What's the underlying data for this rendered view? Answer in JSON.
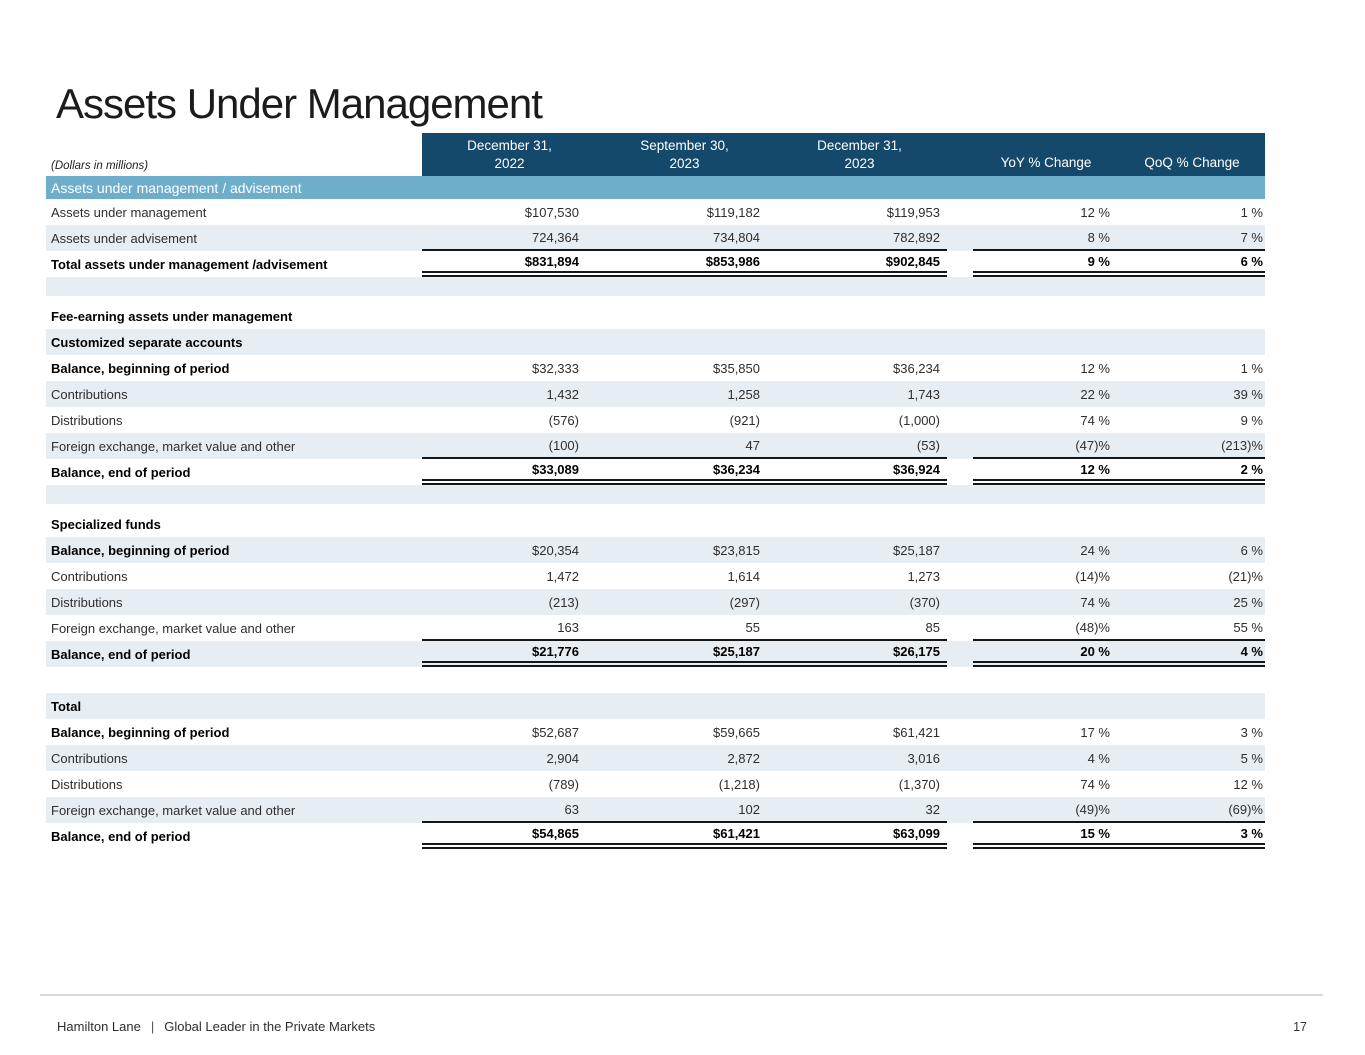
{
  "page": {
    "title": "Assets Under Management",
    "units_note": "(Dollars in millions)",
    "footer": {
      "brand": "Hamilton Lane",
      "separator": "|",
      "tagline": "Global Leader in the Private Markets",
      "page_number": "17"
    }
  },
  "colors": {
    "header_bg": "#14496b",
    "band_bg": "#6faecb",
    "row_shade_bg": "#e7eef3"
  },
  "table": {
    "band_label": "Assets under management / advisement",
    "columns": [
      {
        "line1": "December 31,",
        "line2": "2022"
      },
      {
        "line1": "September 30,",
        "line2": "2023"
      },
      {
        "line1": "December 31,",
        "line2": "2023"
      },
      {
        "label": "YoY % Change"
      },
      {
        "label": "QoQ % Change"
      }
    ],
    "rows": [
      {
        "kind": "data",
        "label": "Assets under management",
        "values": [
          "$107,530",
          "$119,182",
          "$119,953",
          "12 %",
          "1 %"
        ],
        "shaded": false
      },
      {
        "kind": "data",
        "label": "Assets under advisement",
        "values": [
          "724,364",
          "734,804",
          "782,892",
          "8 %",
          "7 %"
        ],
        "shaded": true,
        "rule": "single-below"
      },
      {
        "kind": "data",
        "label": "Total assets under management /advisement",
        "values": [
          "$831,894",
          "$853,986",
          "$902,845",
          "9 %",
          "6 %"
        ],
        "shaded": false,
        "bold": "row",
        "rule": "double-below"
      },
      {
        "kind": "spacer",
        "shaded": true
      },
      {
        "kind": "gap",
        "shaded": false
      },
      {
        "kind": "section",
        "label": "Fee-earning assets under management",
        "shaded": false
      },
      {
        "kind": "section",
        "label": "Customized separate accounts",
        "shaded": true
      },
      {
        "kind": "data",
        "label": "Balance, beginning of period",
        "values": [
          "$32,333",
          "$35,850",
          "$36,234",
          "12 %",
          "1 %"
        ],
        "shaded": false,
        "bold": "label"
      },
      {
        "kind": "data",
        "label": "Contributions",
        "values": [
          "1,432",
          "1,258",
          "1,743",
          "22 %",
          "39 %"
        ],
        "shaded": true
      },
      {
        "kind": "data",
        "label": "Distributions",
        "values": [
          "(576)",
          "(921)",
          "(1,000)",
          "74 %",
          "9 %"
        ],
        "shaded": false
      },
      {
        "kind": "data",
        "label": "Foreign exchange, market value and other",
        "values": [
          "(100)",
          "47",
          "(53)",
          "(47)%",
          "(213)%"
        ],
        "shaded": true,
        "rule": "single-below"
      },
      {
        "kind": "data",
        "label": "Balance, end of period",
        "values": [
          "$33,089",
          "$36,234",
          "$36,924",
          "12 %",
          "2 %"
        ],
        "shaded": false,
        "bold": "row",
        "rule": "double-below"
      },
      {
        "kind": "spacer",
        "shaded": true
      },
      {
        "kind": "gap",
        "shaded": false
      },
      {
        "kind": "section",
        "label": "Specialized funds",
        "shaded": false
      },
      {
        "kind": "data",
        "label": "Balance, beginning of period",
        "values": [
          "$20,354",
          "$23,815",
          "$25,187",
          "24 %",
          "6 %"
        ],
        "shaded": true,
        "bold": "label"
      },
      {
        "kind": "data",
        "label": "Contributions",
        "values": [
          "1,472",
          "1,614",
          "1,273",
          "(14)%",
          "(21)%"
        ],
        "shaded": false
      },
      {
        "kind": "data",
        "label": "Distributions",
        "values": [
          "(213)",
          "(297)",
          "(370)",
          "74 %",
          "25 %"
        ],
        "shaded": true
      },
      {
        "kind": "data",
        "label": "Foreign exchange, market value and other",
        "values": [
          "163",
          "55",
          "85",
          "(48)%",
          "55 %"
        ],
        "shaded": false,
        "rule": "single-below"
      },
      {
        "kind": "data",
        "label": "Balance, end of period",
        "values": [
          "$21,776",
          "$25,187",
          "$26,175",
          "20 %",
          "4 %"
        ],
        "shaded": true,
        "bold": "row",
        "rule": "double-below"
      },
      {
        "kind": "gap-lg",
        "shaded": false
      },
      {
        "kind": "section",
        "label": "Total",
        "shaded": true
      },
      {
        "kind": "data",
        "label": "Balance, beginning of period",
        "values": [
          "$52,687",
          "$59,665",
          "$61,421",
          "17 %",
          "3 %"
        ],
        "shaded": false,
        "bold": "label"
      },
      {
        "kind": "data",
        "label": "Contributions",
        "values": [
          "2,904",
          "2,872",
          "3,016",
          "4 %",
          "5 %"
        ],
        "shaded": true
      },
      {
        "kind": "data",
        "label": "Distributions",
        "values": [
          "(789)",
          "(1,218)",
          "(1,370)",
          "74 %",
          "12 %"
        ],
        "shaded": false
      },
      {
        "kind": "data",
        "label": "Foreign exchange, market value and other",
        "values": [
          "63",
          "102",
          "32",
          "(49)%",
          "(69)%"
        ],
        "shaded": true,
        "rule": "single-below"
      },
      {
        "kind": "data",
        "label": "Balance, end of period",
        "values": [
          "$54,865",
          "$61,421",
          "$63,099",
          "15 %",
          "3 %"
        ],
        "shaded": false,
        "bold": "row",
        "rule": "double-below"
      }
    ]
  }
}
